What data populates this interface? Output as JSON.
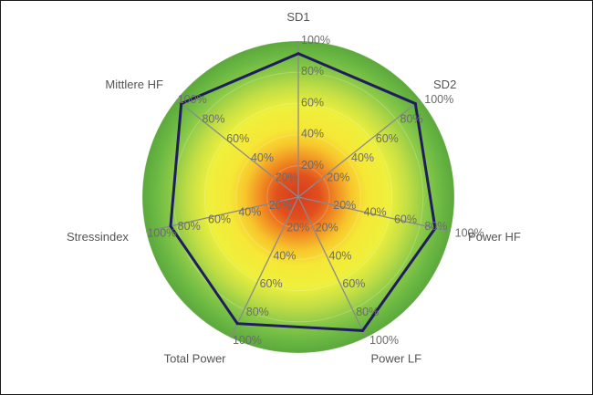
{
  "chart_data": {
    "type": "radar",
    "axes": [
      "SD1",
      "SD2",
      "Power HF",
      "Power LF",
      "Total Power",
      "Stressindex",
      "Mittlere HF"
    ],
    "tick_labels": [
      "20%",
      "40%",
      "60%",
      "80%",
      "100%"
    ],
    "range": [
      0,
      100
    ],
    "series": [
      {
        "values": [
          92,
          96,
          90,
          95,
          90,
          84,
          96
        ]
      }
    ],
    "colors": {
      "series_line": "#1f1d5c",
      "spokes": "#8a8a8a",
      "zone_center": "#d9431f",
      "zone_mid": "#f5e83a",
      "zone_outer": "#5fae3e"
    }
  }
}
